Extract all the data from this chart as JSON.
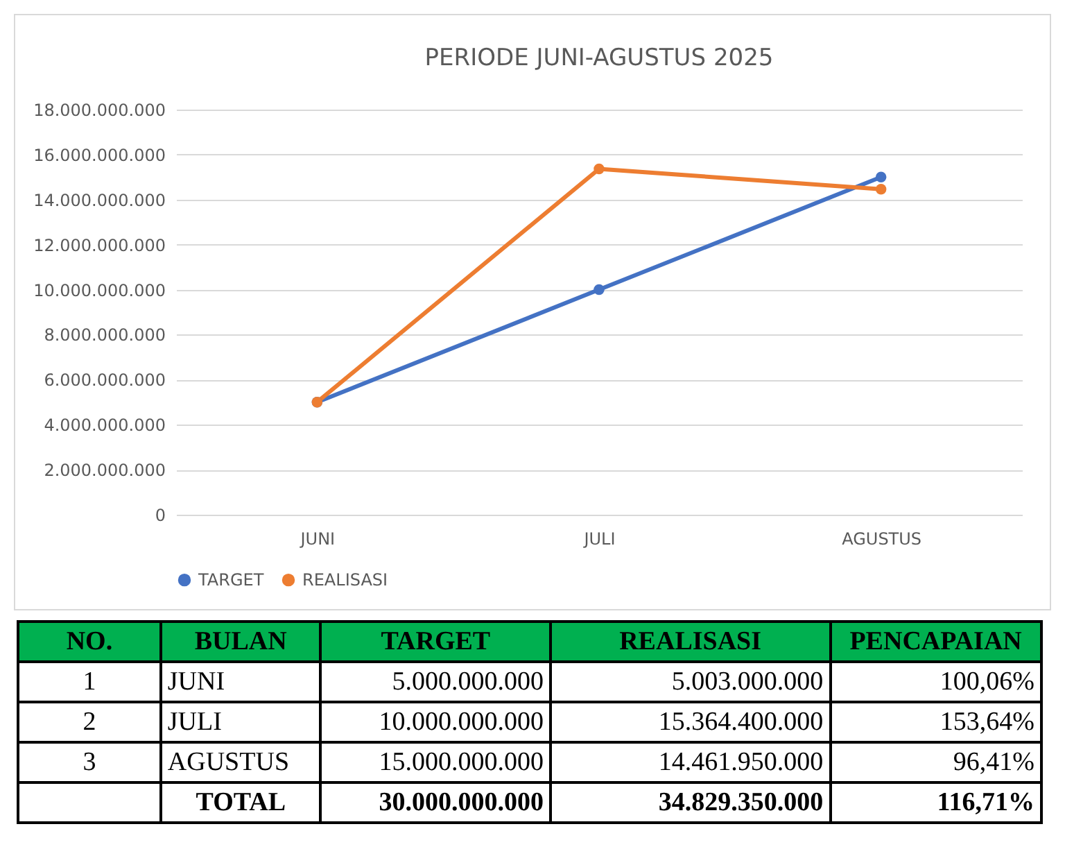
{
  "chart_data": {
    "type": "line",
    "title": "PERIODE JUNI-AGUSTUS 2025",
    "categories": [
      "JUNI",
      "JULI",
      "AGUSTUS"
    ],
    "series": [
      {
        "name": "TARGET",
        "color": "#4472c4",
        "values": [
          5000000000,
          10000000000,
          15000000000
        ]
      },
      {
        "name": "REALISASI",
        "color": "#ed7d31",
        "values": [
          5003000000,
          15364400000,
          14461950000
        ]
      }
    ],
    "ylim": [
      0,
      18000000000
    ],
    "yticks": [
      {
        "value": 0,
        "label": "0"
      },
      {
        "value": 2000000000,
        "label": "2.000.000.000"
      },
      {
        "value": 4000000000,
        "label": "4.000.000.000"
      },
      {
        "value": 6000000000,
        "label": "6.000.000.000"
      },
      {
        "value": 8000000000,
        "label": "8.000.000.000"
      },
      {
        "value": 10000000000,
        "label": "10.000.000.000"
      },
      {
        "value": 12000000000,
        "label": "12.000.000.000"
      },
      {
        "value": 14000000000,
        "label": "14.000.000.000"
      },
      {
        "value": 16000000000,
        "label": "16.000.000.000"
      },
      {
        "value": 18000000000,
        "label": "18.000.000.000"
      }
    ],
    "grid": "y",
    "legend": "bottom",
    "marker": "circle",
    "line_style": "solid",
    "annotations": [
      "NO.",
      "BULAN",
      "PENCAPAIAN",
      "1",
      "2",
      "3",
      "5.000.000.000",
      "10.000.000.000",
      "15.000.000.000",
      "5.003.000.000",
      "15.364.400.000",
      "14.461.950.000",
      "100,06%",
      "153,64%",
      "96,41%",
      "TOTAL",
      "30.000.000.000",
      "34.829.350.000",
      "116,71%"
    ]
  }
}
